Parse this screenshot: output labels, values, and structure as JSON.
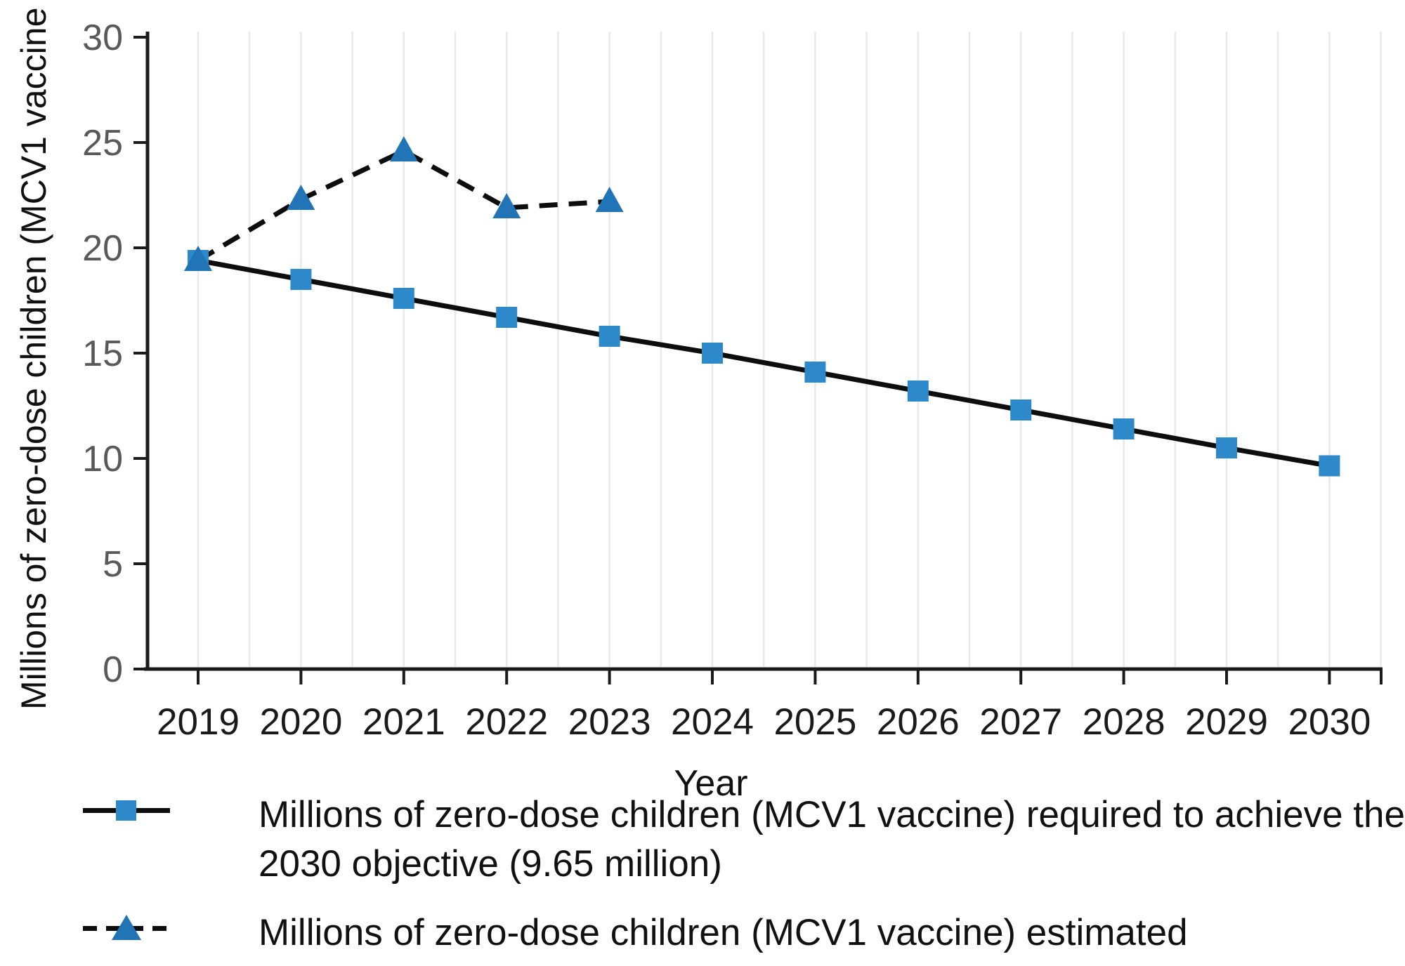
{
  "figure": {
    "xlabel": "Year",
    "ylabel": "Millions of zero-dose children (MCV1 vaccine"
  },
  "colors": {
    "square_marker": "#2d89c9",
    "triangle_marker": "#2174b5",
    "series_line": "#0d0d0d",
    "axis": "#1a1a1a",
    "grid": "#e9e9e9",
    "y_tick_label": "#595959",
    "x_tick_label": "#1a1a1a"
  },
  "chart_data": {
    "type": "line",
    "title": "",
    "xlabel": "Year",
    "ylabel": "Millions of zero-dose children (MCV1 vaccine",
    "categories": [
      "2019",
      "2020",
      "2021",
      "2022",
      "2023",
      "2024",
      "2025",
      "2026",
      "2027",
      "2028",
      "2029",
      "2030"
    ],
    "yticks": [
      0,
      5,
      10,
      15,
      20,
      25,
      30
    ],
    "ylim": [
      0,
      30
    ],
    "grid": "vertical-only",
    "legend_position": "below-left",
    "series": [
      {
        "name": "required",
        "label_lines": [
          "Millions of zero-dose children (MCV1 vaccine) required to achieve the",
          "2030 objective (9.65 million)"
        ],
        "line_style": "solid",
        "marker": "square",
        "values": [
          19.4,
          18.5,
          17.6,
          16.7,
          15.8,
          15.0,
          14.1,
          13.2,
          12.3,
          11.4,
          10.5,
          9.65
        ]
      },
      {
        "name": "estimated",
        "label_lines": [
          "Millions of zero-dose children (MCV1 vaccine) estimated"
        ],
        "line_style": "dashed",
        "marker": "triangle",
        "values": [
          19.4,
          22.3,
          24.6,
          21.9,
          22.2
        ]
      }
    ]
  }
}
